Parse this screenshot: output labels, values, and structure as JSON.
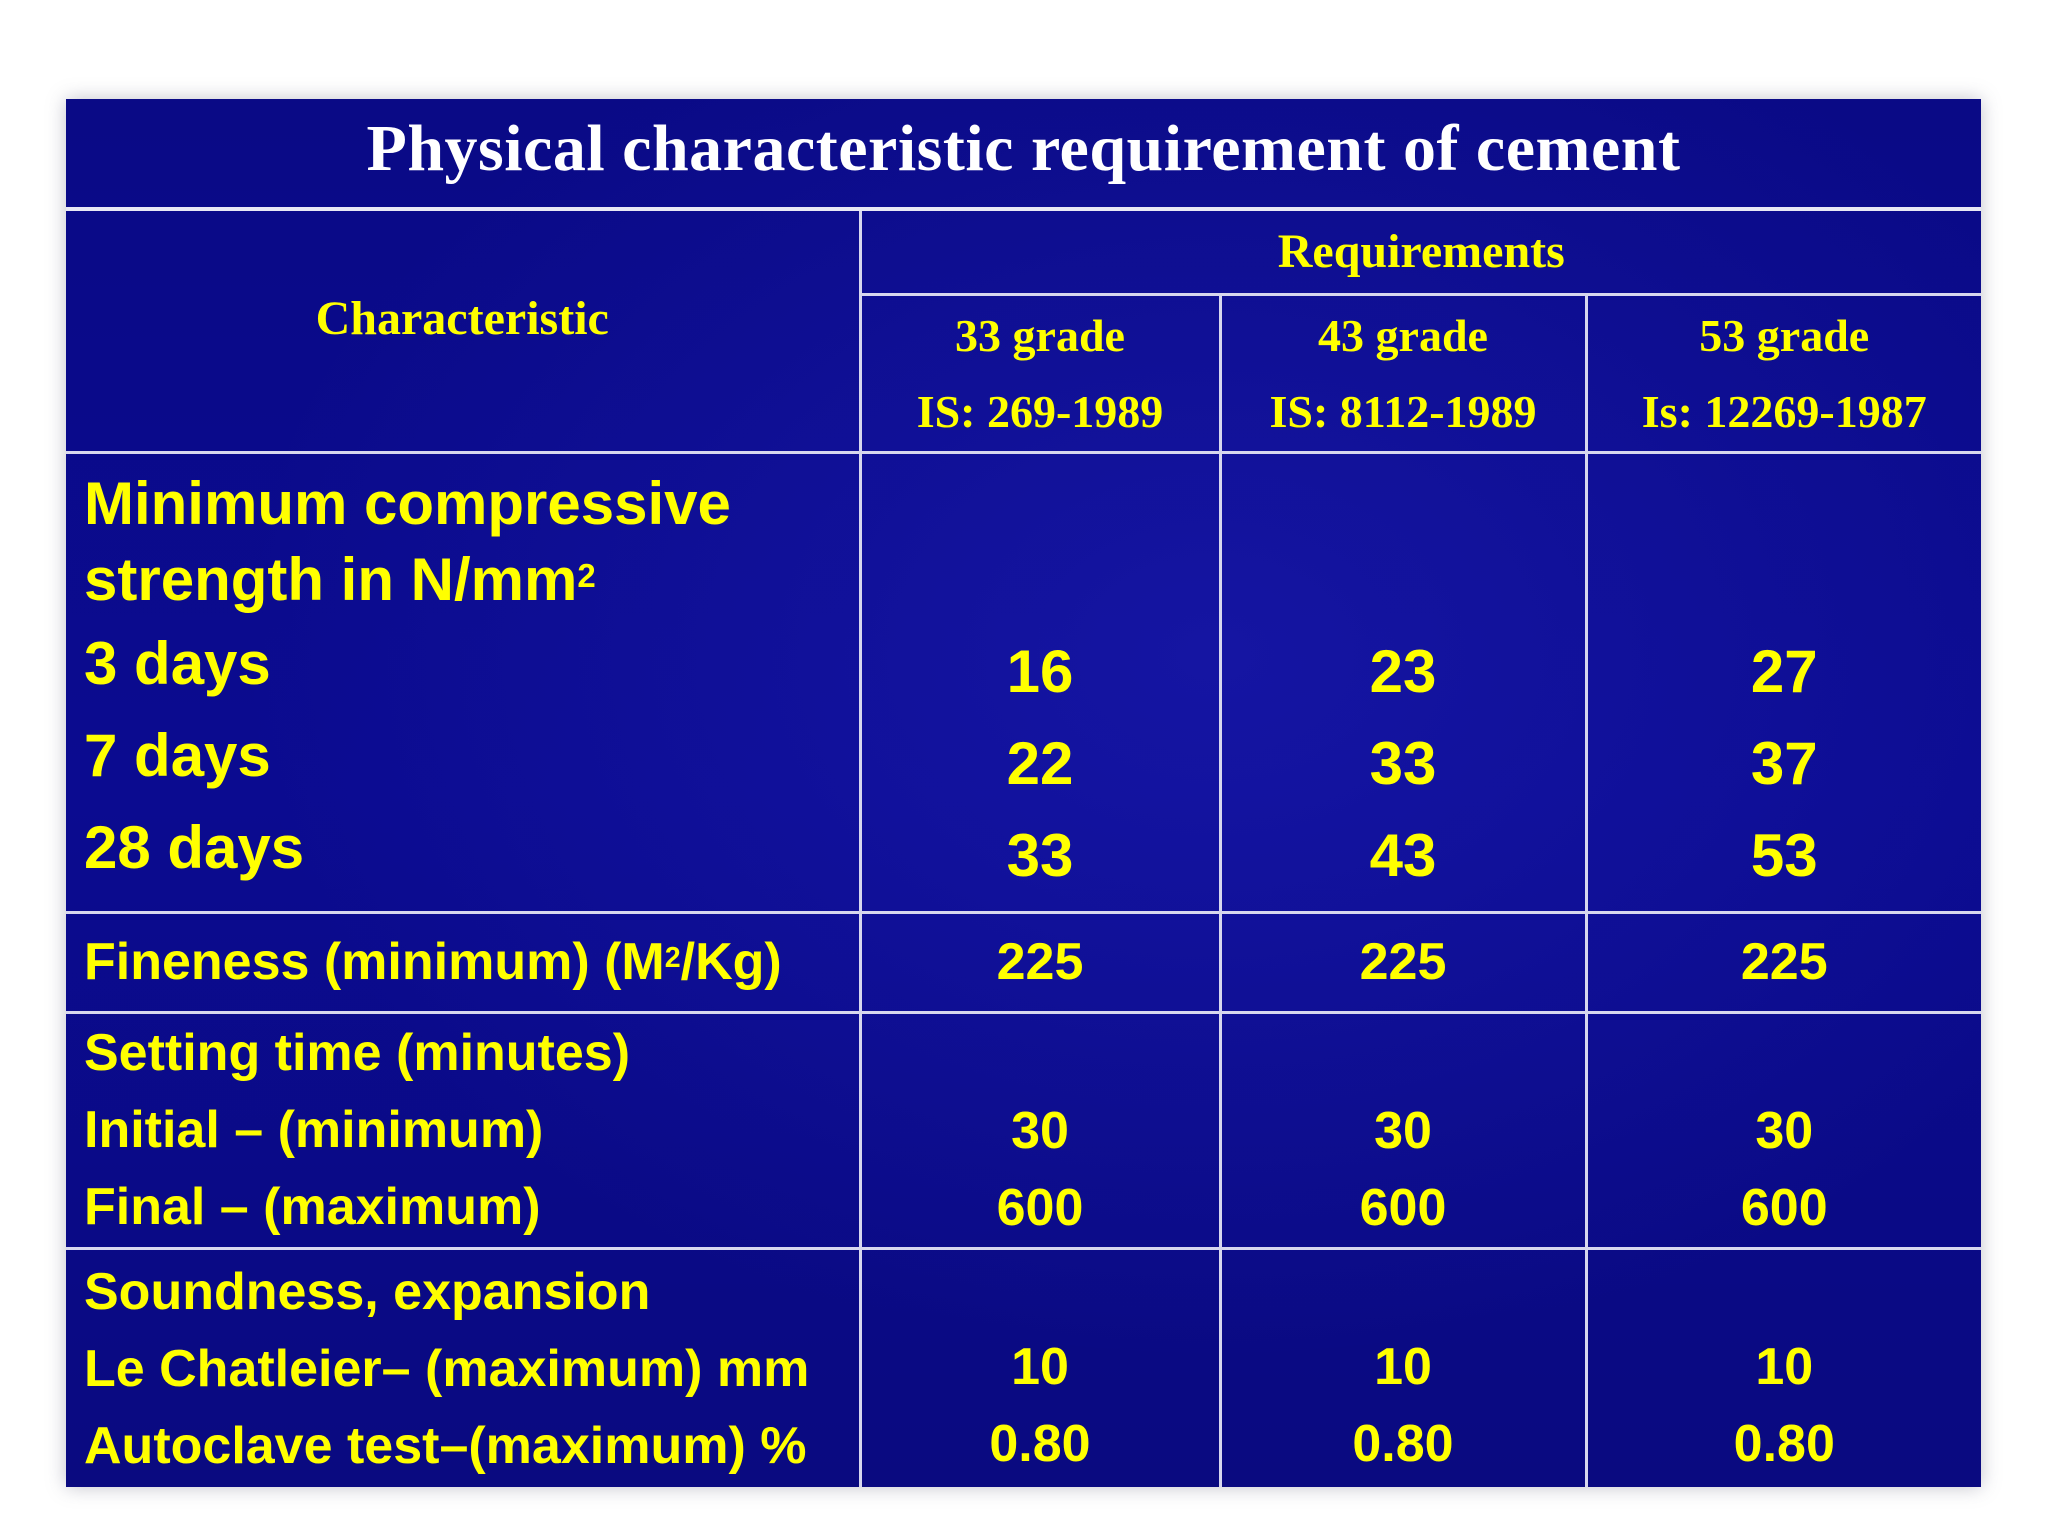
{
  "title": "Physical characteristic requirement of cement",
  "header": {
    "characteristic": "Characteristic",
    "requirements": "Requirements",
    "grades": [
      {
        "grade": "33 grade",
        "standard": "IS: 269-1989"
      },
      {
        "grade": "43 grade",
        "standard": "IS: 8112-1989"
      },
      {
        "grade": "53 grade",
        "standard": "Is: 12269-1987"
      }
    ]
  },
  "compressive": {
    "label_line1": "Minimum compressive",
    "label_line2": "strength in N/mm",
    "label_sup": "2",
    "rows": [
      {
        "label": "3 days",
        "values": [
          "16",
          "23",
          "27"
        ]
      },
      {
        "label": "7 days",
        "values": [
          "22",
          "33",
          "37"
        ]
      },
      {
        "label": "28 days",
        "values": [
          "33",
          "43",
          "53"
        ]
      }
    ]
  },
  "fineness": {
    "label_pre": "Fineness (minimum) (M",
    "label_sup": "2",
    "label_post": "/Kg)",
    "values": [
      "225",
      "225",
      "225"
    ]
  },
  "setting": {
    "label": "Setting time (minutes)",
    "rows": [
      {
        "label": "Initial – (minimum)",
        "values": [
          "30",
          "30",
          "30"
        ]
      },
      {
        "label": "Final – (maximum)",
        "values": [
          "600",
          "600",
          "600"
        ]
      }
    ]
  },
  "soundness": {
    "label": "Soundness, expansion",
    "rows": [
      {
        "label": "Le Chatleier– (maximum) mm",
        "values": [
          "10",
          "10",
          "10"
        ]
      },
      {
        "label": "Autoclave test–(maximum) %",
        "values": [
          "0.80",
          "0.80",
          "0.80"
        ]
      }
    ]
  },
  "colors": {
    "background": "#0a0a86",
    "title_text": "#ffffff",
    "cell_text": "#ffff00",
    "grid_lines": "#d7d7ee"
  }
}
